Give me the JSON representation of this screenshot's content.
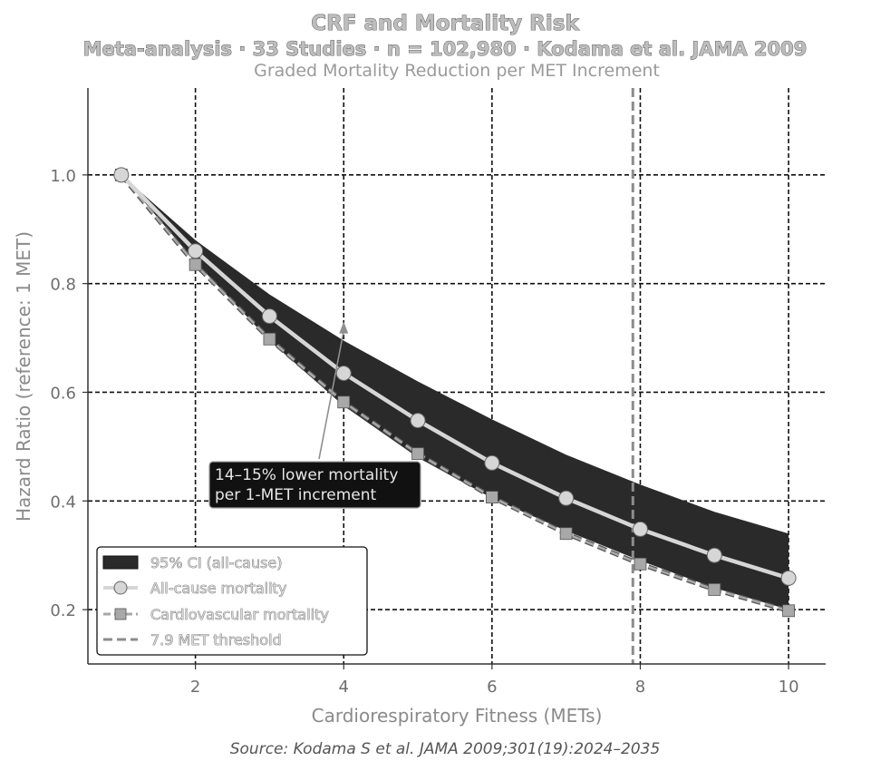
{
  "chart_data": {
    "type": "line",
    "title": "CRF and Mortality Risk",
    "subtitle_line": "Meta-analysis · 33 Studies · n = 102,980 · Kodama et al. JAMA 2009",
    "subtitle": "Graded Mortality Reduction per MET Increment",
    "xlabel": "Cardiorespiratory Fitness (METs)",
    "ylabel": "Hazard Ratio (reference: 1 MET)",
    "xlim": [
      0.55,
      10.5
    ],
    "ylim": [
      0.1,
      1.16
    ],
    "xticks": [
      2,
      4,
      6,
      8,
      10
    ],
    "yticks": [
      0.2,
      0.4,
      0.6,
      0.8,
      1.0
    ],
    "xtick_labels": [
      "2",
      "4",
      "6",
      "8",
      "10"
    ],
    "ytick_labels": [
      "0.2",
      "0.4",
      "0.6",
      "0.8",
      "1.0"
    ],
    "grid": true,
    "legend_position": "lower-left",
    "x": [
      1,
      2,
      3,
      4,
      5,
      6,
      7,
      8,
      9,
      10
    ],
    "series": [
      {
        "name": "All-cause mortality",
        "style": "solid-circle",
        "color": "#d6d6d6",
        "values": [
          1.0,
          0.86,
          0.74,
          0.635,
          0.548,
          0.47,
          0.405,
          0.348,
          0.3,
          0.258
        ]
      },
      {
        "name": "Cardiovascular mortality",
        "style": "dashed-square",
        "color": "#a8a8a8",
        "values": [
          1.0,
          0.835,
          0.698,
          0.582,
          0.487,
          0.407,
          0.34,
          0.284,
          0.237,
          0.198
        ]
      }
    ],
    "ci_band": {
      "name": "95% CI (all-cause)",
      "color": "#2a2a2a",
      "lower": [
        1.0,
        0.84,
        0.695,
        0.575,
        0.48,
        0.405,
        0.345,
        0.29,
        0.24,
        0.2
      ],
      "upper": [
        1.0,
        0.88,
        0.78,
        0.695,
        0.62,
        0.55,
        0.485,
        0.43,
        0.38,
        0.34
      ]
    },
    "threshold": {
      "name": "7.9 MET threshold",
      "x": 7.9,
      "color": "#8c8c8c"
    },
    "annotation": {
      "lines": [
        "14–15% lower mortality",
        "per 1-MET increment"
      ],
      "arrow_to": [
        4,
        0.73
      ],
      "text_at": [
        3.1,
        0.41
      ]
    },
    "source": "Source: Kodama S et al. JAMA 2009;301(19):2024–2035"
  }
}
